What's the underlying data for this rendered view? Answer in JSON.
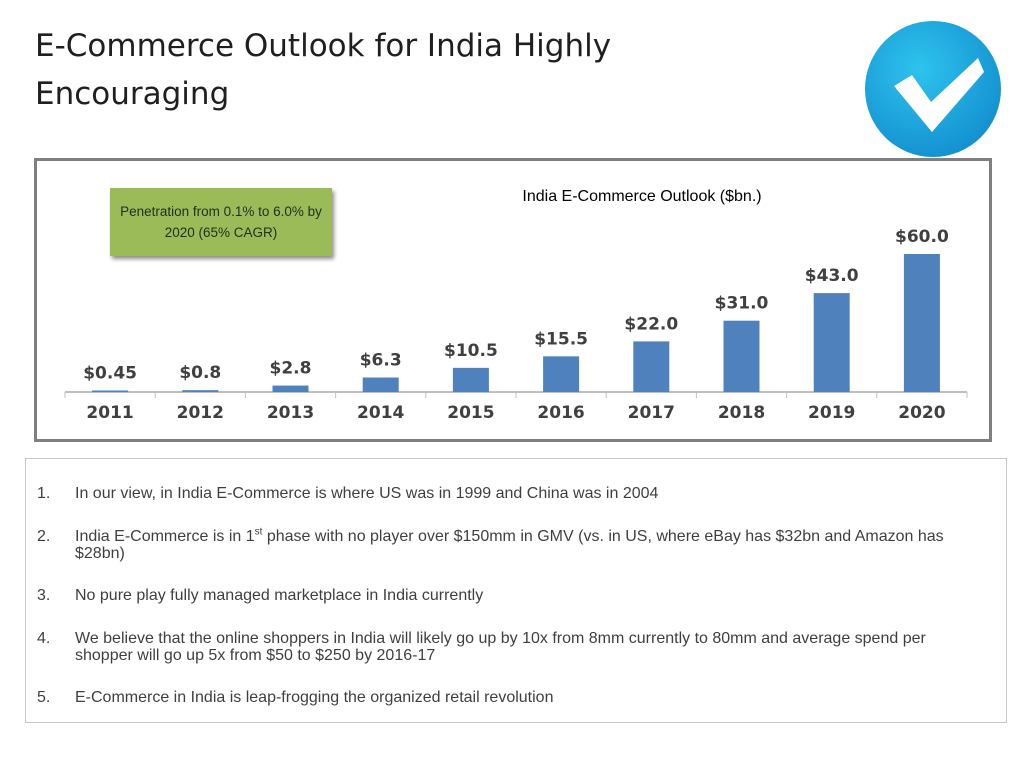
{
  "slide": {
    "title": "E-Commerce Outlook for India Highly Encouraging"
  },
  "logo": {
    "icon": "checkmark-icon",
    "color": "#1ba6dc"
  },
  "callout": {
    "text": "Penetration from 0.1% to 6.0% by 2020 (65% CAGR)",
    "color": "#9bbb59"
  },
  "chart_data": {
    "type": "bar",
    "title": "India E-Commerce Outlook ($bn.)",
    "categories": [
      "2011",
      "2012",
      "2013",
      "2014",
      "2015",
      "2016",
      "2017",
      "2018",
      "2019",
      "2020"
    ],
    "values": [
      0.45,
      0.8,
      2.8,
      6.3,
      10.5,
      15.5,
      22.0,
      31.0,
      43.0,
      60.0
    ],
    "data_labels": [
      "$0.45",
      "$0.8",
      "$2.8",
      "$6.3",
      "$10.5",
      "$15.5",
      "$22.0",
      "$31.0",
      "$43.0",
      "$60.0"
    ],
    "bar_color": "#4f81bd",
    "ylim": [
      0,
      60
    ],
    "grid": false,
    "legend": false
  },
  "notes": {
    "items": [
      {
        "num": "1.",
        "text": "In our view, in India E-Commerce is where US was in 1999 and China was in 2004"
      },
      {
        "num": "2.",
        "text_a": "India E-Commerce is in 1",
        "sup": "st",
        "text_b": " phase with no player over $150mm in GMV (vs. in US, where eBay has $32bn and Amazon has $28bn)"
      },
      {
        "num": "3.",
        "text": "No pure play fully managed marketplace in India currently"
      },
      {
        "num": "4.",
        "text": "We believe that the online shoppers in India will likely go up by 10x  from 8mm currently to 80mm and average spend per shopper will go up 5x from $50 to $250 by 2016-17"
      },
      {
        "num": "5.",
        "text": "E-Commerce in India is leap-frogging the organized retail revolution"
      }
    ]
  }
}
